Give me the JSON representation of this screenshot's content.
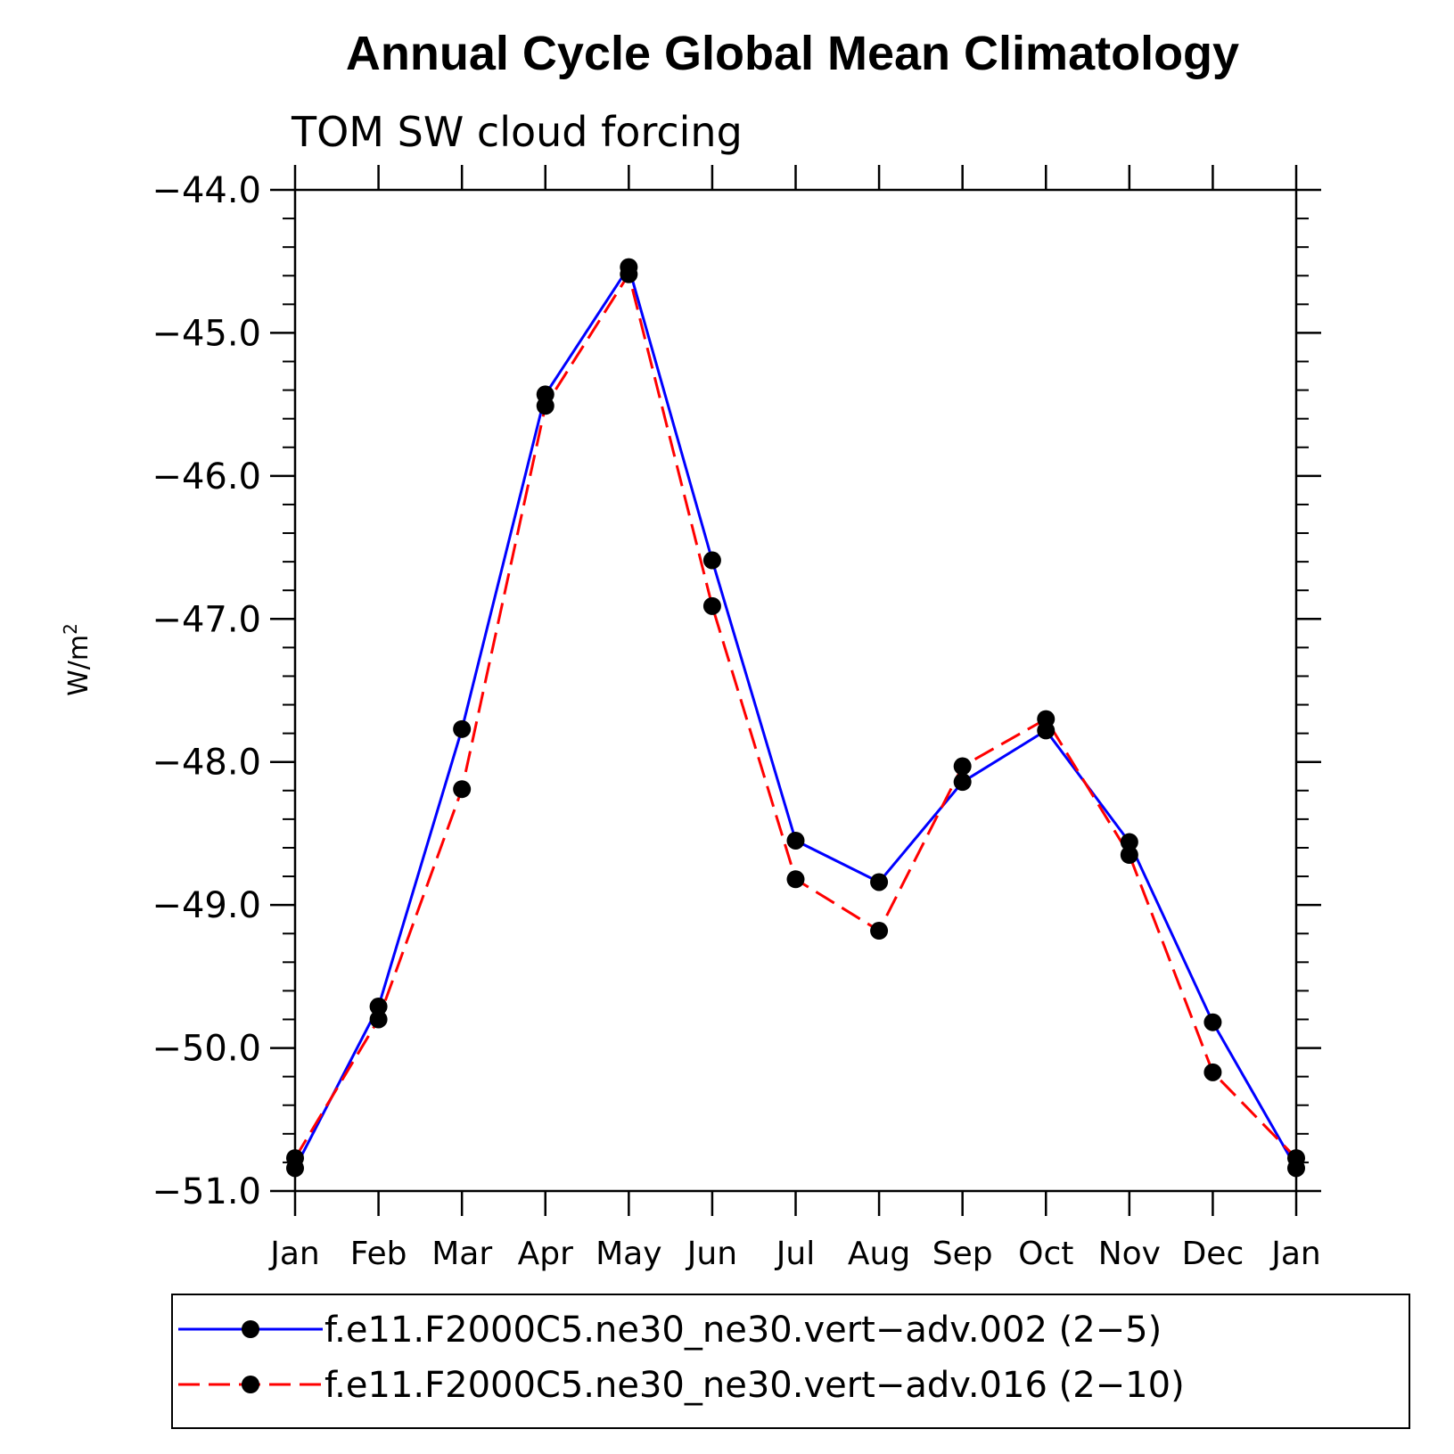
{
  "chart_data": {
    "type": "line",
    "title": "Annual Cycle Global Mean Climatology",
    "subtitle": "TOM SW cloud forcing",
    "ylabel": "W/m",
    "ylabel_sup": "2",
    "xlabel": "",
    "categories": [
      "Jan",
      "Feb",
      "Mar",
      "Apr",
      "May",
      "Jun",
      "Jul",
      "Aug",
      "Sep",
      "Oct",
      "Nov",
      "Dec",
      "Jan"
    ],
    "ylim": [
      -51.0,
      -44.0
    ],
    "yticks": [
      -44.0,
      -45.0,
      -46.0,
      -47.0,
      -48.0,
      -49.0,
      -50.0,
      -51.0
    ],
    "ytick_labels": [
      "−44.0",
      "−45.0",
      "−46.0",
      "−47.0",
      "−48.0",
      "−49.0",
      "−50.0",
      "−51.0"
    ],
    "series": [
      {
        "name": "f.e11.F2000C5.ne30_ne30.vert−adv.002 (2−5)",
        "color": "#0000ff",
        "dash": "solid",
        "values": [
          -50.84,
          -49.71,
          -47.77,
          -45.43,
          -44.54,
          -46.59,
          -48.55,
          -48.84,
          -48.14,
          -47.78,
          -48.56,
          -49.82,
          -50.84
        ]
      },
      {
        "name": "f.e11.F2000C5.ne30_ne30.vert−adv.016 (2−10)",
        "color": "#ff0000",
        "dash": "dashed",
        "values": [
          -50.77,
          -49.8,
          -48.19,
          -45.51,
          -44.59,
          -46.91,
          -48.82,
          -49.18,
          -48.03,
          -47.7,
          -48.65,
          -50.17,
          -50.77
        ]
      }
    ],
    "legend_position": "bottom"
  }
}
